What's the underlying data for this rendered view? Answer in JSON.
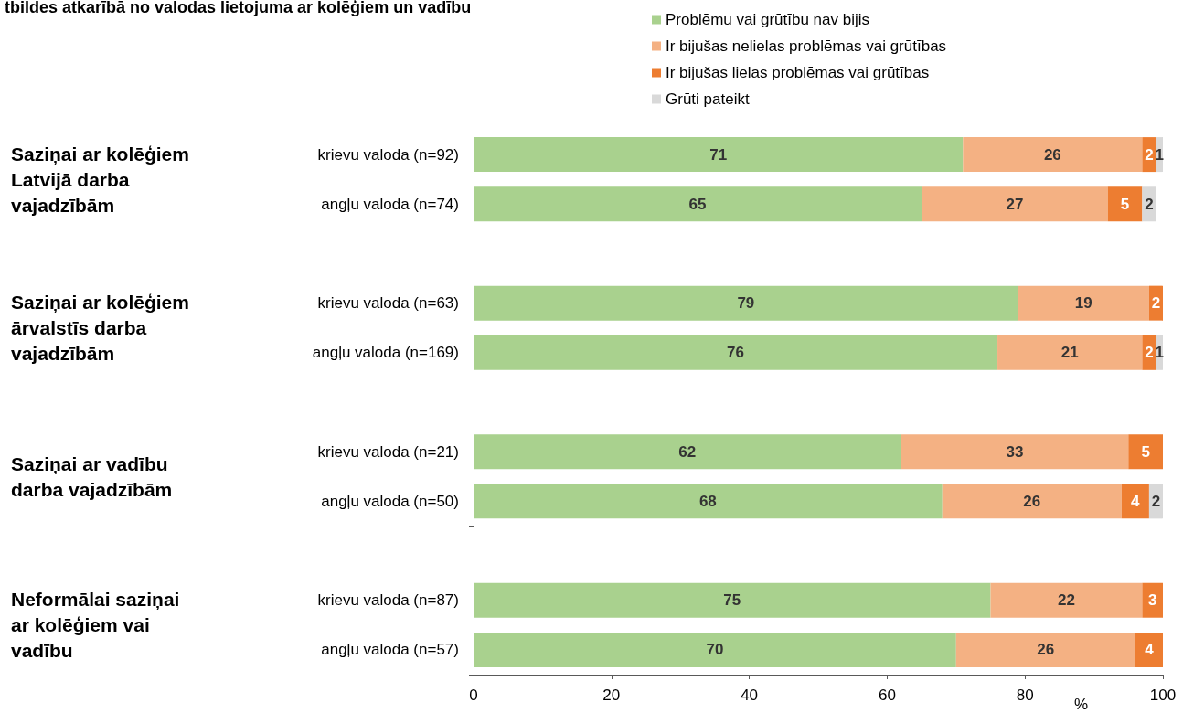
{
  "chart_data": {
    "type": "bar",
    "orientation": "horizontal",
    "stacked": true,
    "title": "tbildes atkarībā no valodas lietojuma ar kolēģiem un vadību",
    "xlabel": "%",
    "categories": [
      "krievu valoda (n=92)",
      "angļu valoda (n=74)",
      null,
      "krievu valoda (n=63)",
      "angļu valoda (n=169)",
      null,
      "krievu valoda (n=21)",
      "angļu valoda (n=50)",
      null,
      "krievu valoda (n=87)",
      "angļu valoda (n=57)"
    ],
    "series": [
      {
        "name": "Problēmu vai grūtību nav bijis",
        "color": "#a9d18e",
        "values": [
          71,
          65,
          null,
          79,
          76,
          null,
          62,
          68,
          null,
          75,
          70
        ]
      },
      {
        "name": "Ir bijušas nelielas problēmas vai grūtības",
        "color": "#f4b183",
        "values": [
          26,
          27,
          null,
          19,
          21,
          null,
          33,
          26,
          null,
          22,
          26
        ]
      },
      {
        "name": "Ir bijušas lielas problēmas vai grūtības",
        "color": "#ed7d31",
        "values": [
          2,
          5,
          null,
          2,
          2,
          null,
          5,
          4,
          null,
          3,
          4
        ]
      },
      {
        "name": "Grūti pateikt",
        "color": "#d9d9d9",
        "values": [
          1,
          2,
          null,
          null,
          1,
          null,
          null,
          2,
          null,
          null,
          null
        ]
      }
    ],
    "annotations": [
      "Saziņai ar kolēģiem Latvijā darba vajadzībām",
      "Saziņai ar kolēģiem ārvalstīs darba vajadzībām",
      "Saziņai ar vadību darba vajadzībām",
      "Neformālai saziņai ar kolēģiem vai vadību"
    ],
    "xlim": [
      0,
      100
    ],
    "xticks": [
      0,
      20,
      40,
      60,
      80,
      100
    ],
    "grid": false,
    "legend": "top right",
    "data_labels": true
  }
}
